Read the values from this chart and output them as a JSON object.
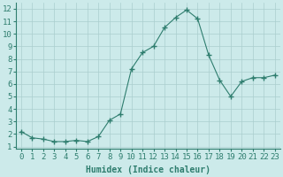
{
  "x": [
    0,
    1,
    2,
    3,
    4,
    5,
    6,
    7,
    8,
    9,
    10,
    11,
    12,
    13,
    14,
    15,
    16,
    17,
    18,
    19,
    20,
    21,
    22,
    23
  ],
  "y": [
    2.2,
    1.7,
    1.6,
    1.4,
    1.4,
    1.5,
    1.4,
    1.8,
    3.1,
    3.6,
    7.2,
    8.5,
    9.0,
    10.5,
    11.3,
    11.9,
    11.2,
    8.3,
    6.3,
    5.0,
    6.2,
    6.5,
    6.5,
    6.7
  ],
  "line_color": "#2e7d6e",
  "marker": "+",
  "marker_size": 4.0,
  "bg_color": "#cceaea",
  "grid_color": "#aacece",
  "xlabel": "Humidex (Indice chaleur)",
  "xlabel_fontsize": 7,
  "tick_fontsize": 6.5,
  "xlim": [
    -0.5,
    23.5
  ],
  "ylim": [
    0.8,
    12.5
  ],
  "yticks": [
    1,
    2,
    3,
    4,
    5,
    6,
    7,
    8,
    9,
    10,
    11,
    12
  ],
  "xticks": [
    0,
    1,
    2,
    3,
    4,
    5,
    6,
    7,
    8,
    9,
    10,
    11,
    12,
    13,
    14,
    15,
    16,
    17,
    18,
    19,
    20,
    21,
    22,
    23
  ]
}
